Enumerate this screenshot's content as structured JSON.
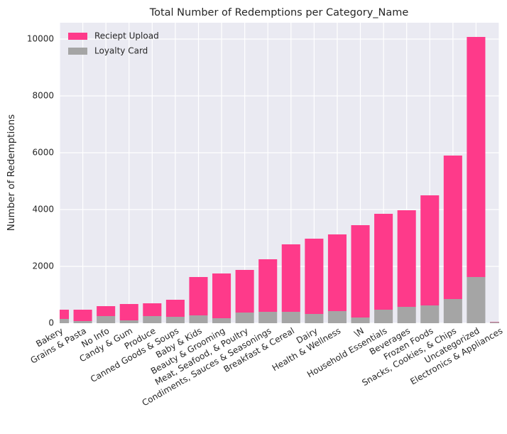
{
  "chart_data": {
    "type": "stacked_bar",
    "title": "Total Number of Redemptions per Category_Name",
    "y_label": "Number of Redemptions",
    "categories": [
      "Bakery",
      "Grains & Pasta",
      "No Info",
      "Candy & Gum",
      "Produce",
      "Canned Goods & Soups",
      "Baby & Kids",
      "Beauty & Grooming",
      "Meat, Seafood, & Poultry",
      "Condiments, Sauces & Seasonings",
      "Breakfast & Cereal",
      "Dairy",
      "Health & Wellness",
      "\\N",
      "Household Essentials",
      "Beverages",
      "Frozen Foods",
      "Snacks, Cookies, & Chips",
      "Uncategorized",
      "Electronics & Appliances"
    ],
    "series": [
      {
        "name": "Loyalty Card",
        "color": "#a5a5a5",
        "values": [
          150,
          75,
          250,
          100,
          250,
          225,
          275,
          175,
          375,
          400,
          400,
          325,
          425,
          200,
          475,
          575,
          625,
          850,
          1625,
          40
        ]
      },
      {
        "name": "Reciept Upload",
        "color": "#fe3a8a",
        "values": [
          325,
          400,
          350,
          575,
          450,
          600,
          1350,
          1575,
          1500,
          1850,
          2375,
          2650,
          2700,
          3250,
          3375,
          3400,
          3875,
          5050,
          8450,
          10
        ]
      }
    ],
    "ylim": [
      0,
      10575
    ],
    "yticks": [
      0,
      2000,
      4000,
      6000,
      8000,
      10000
    ],
    "grid": true,
    "legend": "upper-left"
  }
}
